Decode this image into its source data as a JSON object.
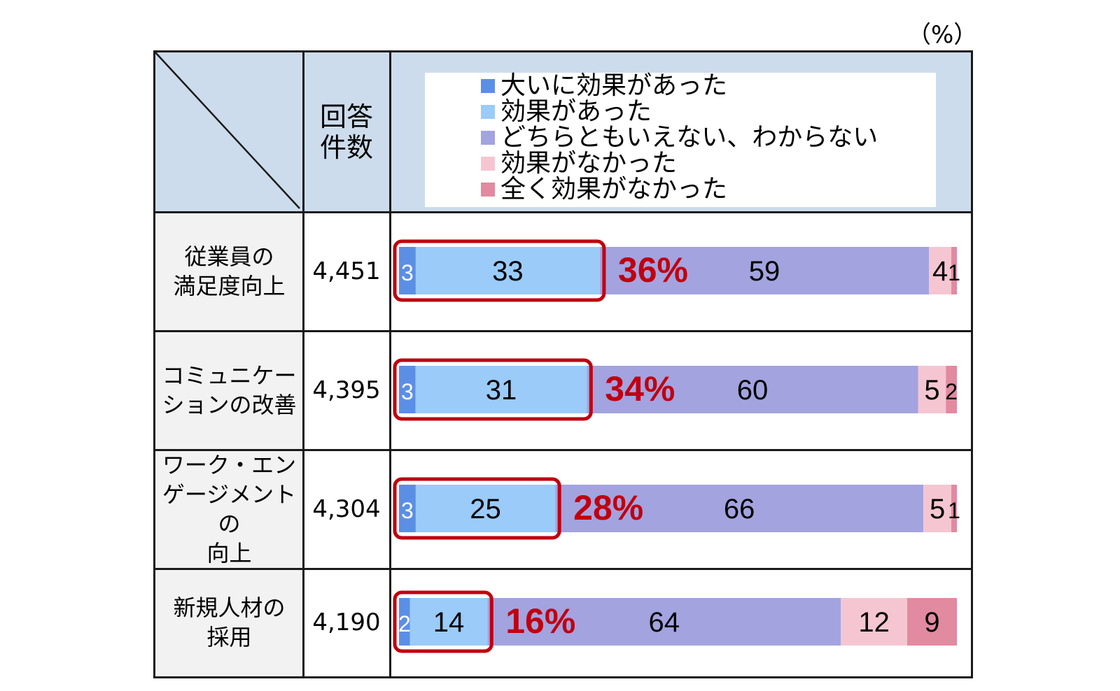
{
  "unit_label": "（%）",
  "header": {
    "count_label_line1": "回答",
    "count_label_line2": "件数"
  },
  "colors": {
    "header_bg": "#cddcec",
    "label_bg": "#f2f2f2",
    "highlight": "#c0000f",
    "segments": [
      "#5b8fe6",
      "#9bcbf9",
      "#a3a3e0",
      "#f5c6d2",
      "#e28aa0"
    ]
  },
  "chart_data": {
    "type": "bar",
    "orientation": "horizontal",
    "stacked": true,
    "legend": [
      "大いに効果があった",
      "効果があった",
      "どちらともいえない、わからない",
      "効果がなかった",
      "全く効果がなかった"
    ],
    "legend_position": "top",
    "xlim": [
      0,
      100
    ],
    "categories": [
      "従業員の\n満足度向上",
      "コミュニケー\nションの改善",
      "ワーク・エン\nゲージメントの\n向上",
      "新規人材の\n採用"
    ],
    "counts": [
      "4,451",
      "4,395",
      "4,304",
      "4,190"
    ],
    "series": [
      {
        "name": "大いに効果があった",
        "values": [
          3,
          3,
          3,
          2
        ]
      },
      {
        "name": "効果があった",
        "values": [
          33,
          31,
          25,
          14
        ]
      },
      {
        "name": "どちらともいえない、わからない",
        "values": [
          59,
          60,
          66,
          64
        ]
      },
      {
        "name": "効果がなかった",
        "values": [
          4,
          5,
          5,
          12
        ]
      },
      {
        "name": "全く効果がなかった",
        "values": [
          1,
          2,
          1,
          9
        ]
      }
    ],
    "highlight_labels": [
      "36%",
      "34%",
      "28%",
      "16%"
    ]
  }
}
